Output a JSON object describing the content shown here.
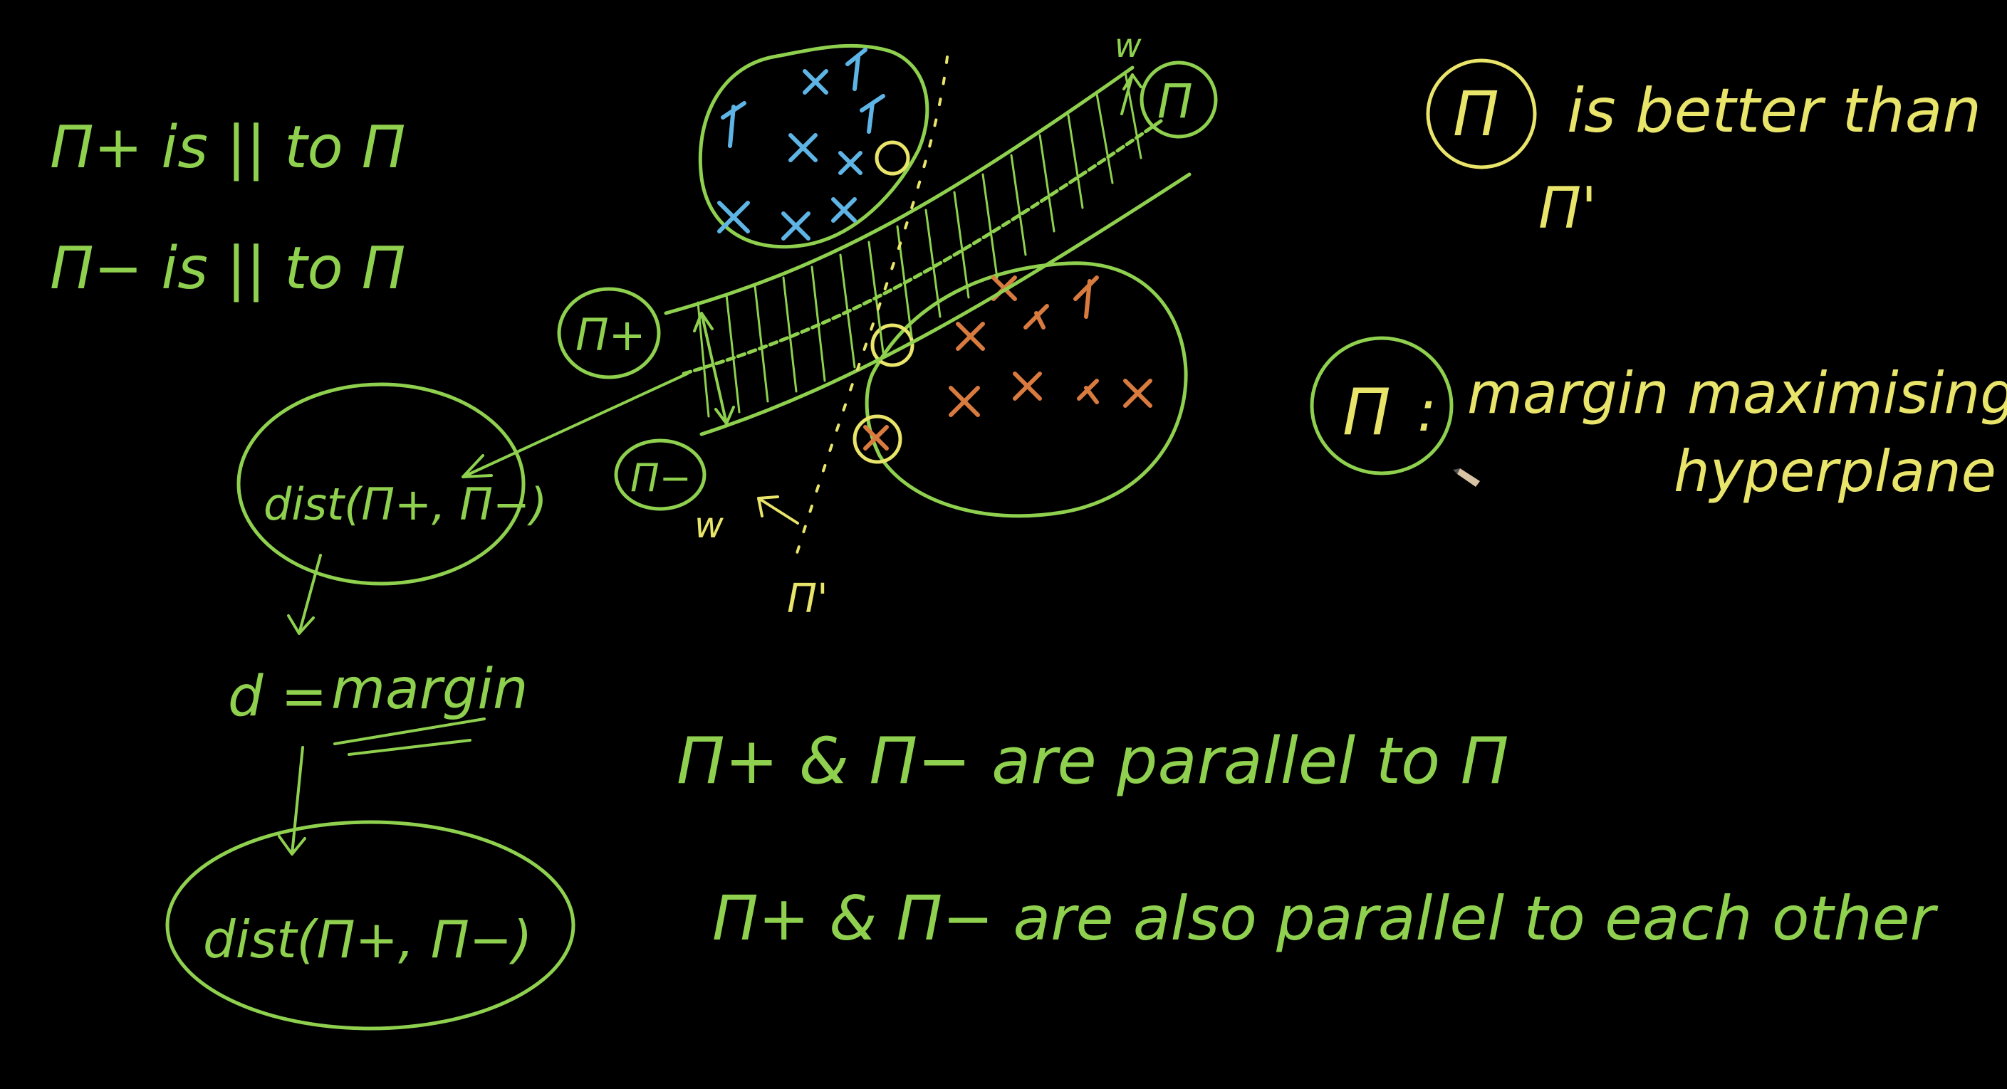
{
  "colors": {
    "background": "#000000",
    "green": "#8fd14f",
    "yellow": "#e9e46a",
    "blue": "#5fb4e6",
    "orange": "#d97a3f"
  },
  "notes_left": {
    "line1": "Π+ is || to Π",
    "line2": "Π− is || to Π"
  },
  "diagram": {
    "pi_plus_label": "Π+",
    "pi_minus_label": "Π−",
    "w_top": "w",
    "pi_top": "Π",
    "w_bottom": "w",
    "pi_prime": "Π'",
    "positive_marker": "x",
    "negative_marker": "x"
  },
  "distance": {
    "dist1": "dist(Π+, Π−)",
    "d_margin_prefix": "d =",
    "d_margin_word": "margin",
    "dist2": "dist(Π+, Π−)"
  },
  "notes_right": {
    "better_pi": "Π",
    "better_text": "is better than",
    "better_pi_prime": "Π'",
    "mm_pi": "Π",
    "mm_colon": ":",
    "mm_line1": "margin maximising",
    "mm_line2": "hyperplane"
  },
  "notes_bottom": {
    "line1": "Π+ & Π− are parallel to Π",
    "line2": "Π+ & Π− are also parallel to each other"
  }
}
